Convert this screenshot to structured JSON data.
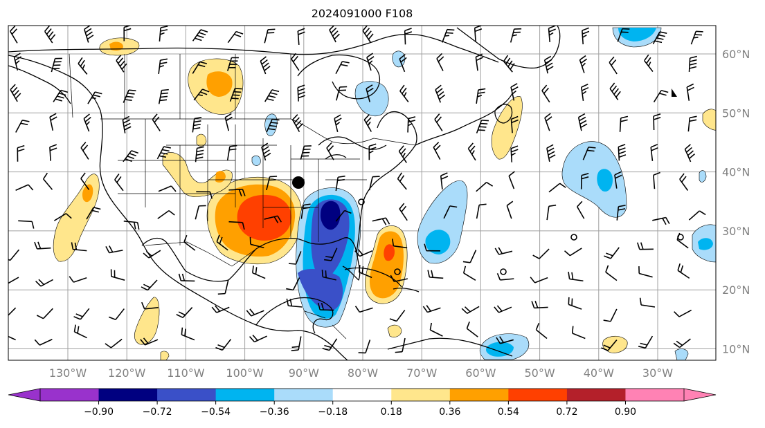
{
  "title": "2024091000 F108",
  "lon_labels": [
    "130°W",
    "120°W",
    "110°W",
    "100°W",
    "90°W",
    "80°W",
    "70°W",
    "60°W",
    "50°W",
    "40°W",
    "30°W"
  ],
  "lat_labels": [
    "60°N",
    "50°N",
    "40°N",
    "30°N",
    "20°N",
    "10°N"
  ],
  "colorbar": {
    "ticks": [
      "−0.90",
      "−0.72",
      "−0.54",
      "−0.36",
      "−0.18",
      "0.18",
      "0.36",
      "0.54",
      "0.72",
      "0.90"
    ],
    "under_color": "#9932cc",
    "over_color": "#ff82b4",
    "colors": [
      "#000080",
      "#3a50c8",
      "#00b4f0",
      "#aadcfa",
      "#ffffff",
      "#ffe68c",
      "#ffa000",
      "#ff4000",
      "#b4202a"
    ]
  },
  "colors": {
    "land_line": "#000000",
    "grid": "#a0a0a0",
    "label_grey": "#808080"
  },
  "markers": [
    "station-dot"
  ]
}
